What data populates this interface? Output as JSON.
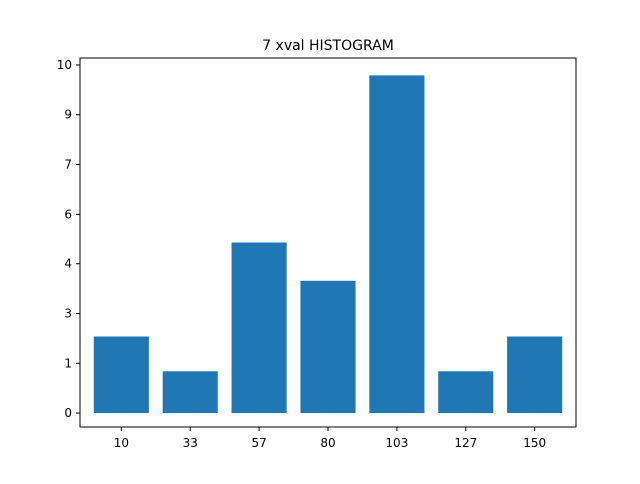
{
  "chart_data": {
    "type": "bar",
    "title": "7 xval HISTOGRAM",
    "xlabel": "",
    "ylabel": "",
    "categories": [
      "10",
      "33",
      "57",
      "80",
      "103",
      "127",
      "150"
    ],
    "values": [
      2.2,
      1.2,
      4.9,
      3.8,
      9.7,
      1.2,
      2.2
    ],
    "ylim": [
      -0.4,
      10.2
    ],
    "yticks": [
      0,
      1.43,
      2.86,
      4.29,
      5.71,
      7.14,
      8.57,
      10
    ],
    "ytick_labels": [
      "0",
      "1",
      "3",
      "4",
      "6",
      "7",
      "9",
      "10"
    ],
    "bar_color": "#1f77b4",
    "grid": false,
    "legend": "none"
  }
}
